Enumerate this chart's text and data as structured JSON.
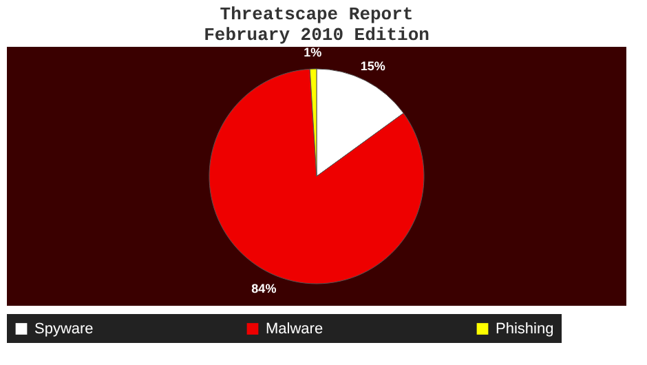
{
  "chart_data": {
    "type": "pie",
    "title": [
      "Threatscape Report",
      "February 2010 Edition"
    ],
    "categories": [
      "Spyware",
      "Malware",
      "Phishing"
    ],
    "values": [
      15,
      84,
      1
    ],
    "colors": [
      "#ffffff",
      "#ee0000",
      "#ffff00"
    ],
    "value_labels": [
      "15%",
      "84%",
      "1%"
    ],
    "legend": "bottom"
  }
}
